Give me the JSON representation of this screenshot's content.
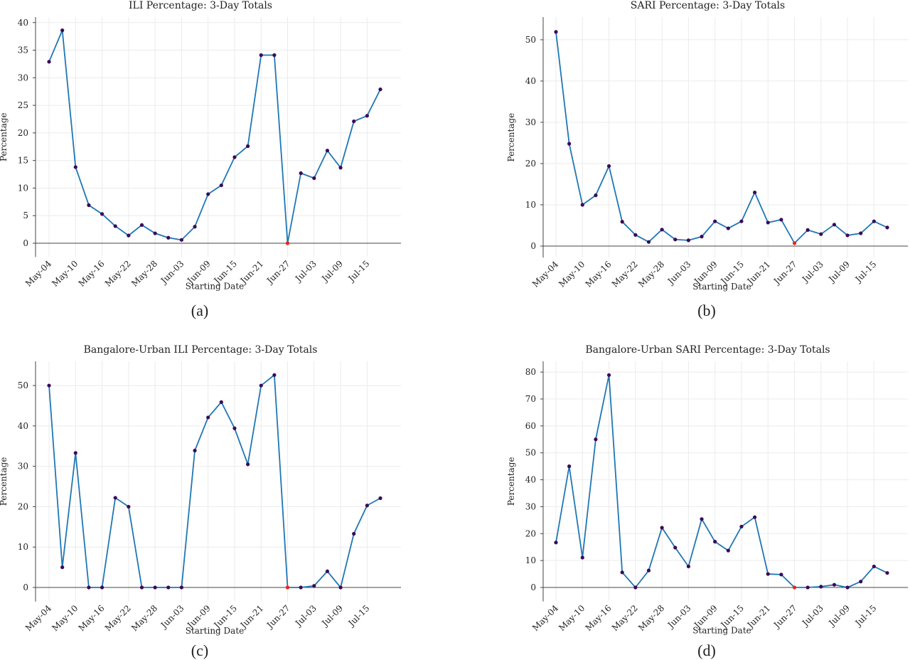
{
  "chart_data": [
    {
      "type": "line",
      "title": "ILI Percentage: 3-Day Totals",
      "xlabel": "Starting Date",
      "ylabel": "Percentage",
      "caption": "(a)",
      "tick_labels": [
        "May-04",
        "May-10",
        "May-16",
        "May-22",
        "May-28",
        "Jun-03",
        "Jun-09",
        "Jun-15",
        "Jun-21",
        "Jun-27",
        "Jul-03",
        "Jul-09",
        "Jul-15"
      ],
      "x": [
        "May-04",
        "May-07",
        "May-10",
        "May-13",
        "May-16",
        "May-19",
        "May-22",
        "May-25",
        "May-28",
        "May-31",
        "Jun-03",
        "Jun-06",
        "Jun-09",
        "Jun-12",
        "Jun-15",
        "Jun-18",
        "Jun-21",
        "Jun-24",
        "Jun-27",
        "Jun-30",
        "Jul-03",
        "Jul-06",
        "Jul-09",
        "Jul-12",
        "Jul-15",
        "Jul-18"
      ],
      "values": [
        32.9,
        38.6,
        13.8,
        6.9,
        5.3,
        3.1,
        1.4,
        3.3,
        1.8,
        1.0,
        0.6,
        3.0,
        8.9,
        10.5,
        15.6,
        17.6,
        34.1,
        34.1,
        0.0,
        12.7,
        11.8,
        16.8,
        13.7,
        22.1,
        23.1,
        27.9
      ],
      "highlight_index": 18,
      "yticks": [
        0,
        5,
        10,
        15,
        20,
        25,
        30,
        35,
        40
      ],
      "ylim": [
        -2.5,
        41
      ],
      "grid": true,
      "line_color": "#1f77b4",
      "marker_color": "#3b0a57",
      "highlight_color": "#e6261c"
    },
    {
      "type": "line",
      "title": "SARI Percentage: 3-Day Totals",
      "xlabel": "Starting Date",
      "ylabel": "Percentage",
      "caption": "(b)",
      "tick_labels": [
        "May-04",
        "May-10",
        "May-16",
        "May-22",
        "May-28",
        "Jun-03",
        "Jun-09",
        "Jun-15",
        "Jun-21",
        "Jun-27",
        "Jul-03",
        "Jul-09",
        "Jul-15"
      ],
      "x": [
        "May-04",
        "May-07",
        "May-10",
        "May-13",
        "May-16",
        "May-19",
        "May-22",
        "May-25",
        "May-28",
        "May-31",
        "Jun-03",
        "Jun-06",
        "Jun-09",
        "Jun-12",
        "Jun-15",
        "Jun-18",
        "Jun-21",
        "Jun-24",
        "Jun-27",
        "Jun-30",
        "Jul-03",
        "Jul-06",
        "Jul-09",
        "Jul-12",
        "Jul-15",
        "Jul-18"
      ],
      "values": [
        51.9,
        24.8,
        10.0,
        12.3,
        19.4,
        5.9,
        2.7,
        1.0,
        4.0,
        1.6,
        1.4,
        2.3,
        6.0,
        4.3,
        6.0,
        13.0,
        5.7,
        6.4,
        0.7,
        3.9,
        2.9,
        5.2,
        2.6,
        3.1,
        6.0,
        4.5
      ],
      "highlight_index": 18,
      "yticks": [
        0,
        10,
        20,
        30,
        40,
        50
      ],
      "ylim": [
        -2.8,
        55.5
      ],
      "grid": true,
      "line_color": "#1f77b4",
      "marker_color": "#3b0a57",
      "highlight_color": "#e6261c"
    },
    {
      "type": "line",
      "title": "Bangalore-Urban ILI Percentage: 3-Day Totals",
      "xlabel": "Starting Date",
      "ylabel": "Percentage",
      "caption": "(c)",
      "tick_labels": [
        "May-04",
        "May-10",
        "May-16",
        "May-22",
        "May-28",
        "Jun-03",
        "Jun-09",
        "Jun-15",
        "Jun-21",
        "Jun-27",
        "Jul-03",
        "Jul-09",
        "Jul-15"
      ],
      "x": [
        "May-04",
        "May-07",
        "May-10",
        "May-13",
        "May-16",
        "May-19",
        "May-22",
        "May-25",
        "May-28",
        "May-31",
        "Jun-03",
        "Jun-06",
        "Jun-09",
        "Jun-12",
        "Jun-15",
        "Jun-18",
        "Jun-21",
        "Jun-24",
        "Jun-27",
        "Jun-30",
        "Jul-03",
        "Jul-06",
        "Jul-09",
        "Jul-12",
        "Jul-15",
        "Jul-18"
      ],
      "values": [
        50.0,
        5.0,
        33.3,
        0.0,
        0.0,
        22.2,
        20.0,
        0.0,
        0.0,
        0.0,
        0.0,
        33.9,
        42.1,
        45.9,
        39.4,
        30.5,
        50.0,
        52.6,
        0.0,
        0.0,
        0.4,
        4.0,
        0.0,
        13.3,
        20.3,
        22.1
      ],
      "highlight_index": 18,
      "yticks": [
        0,
        10,
        20,
        30,
        40,
        50
      ],
      "ylim": [
        -3.5,
        56
      ],
      "grid": true,
      "line_color": "#1f77b4",
      "marker_color": "#3b0a57",
      "highlight_color": "#e6261c"
    },
    {
      "type": "line",
      "title": "Bangalore-Urban SARI Percentage: 3-Day Totals",
      "xlabel": "Starting Date",
      "ylabel": "Percentage",
      "caption": "(d)",
      "tick_labels": [
        "May-04",
        "May-10",
        "May-16",
        "May-22",
        "May-28",
        "Jun-03",
        "Jun-09",
        "Jun-15",
        "Jun-21",
        "Jun-27",
        "Jul-03",
        "Jul-09",
        "Jul-15"
      ],
      "x": [
        "May-04",
        "May-07",
        "May-10",
        "May-13",
        "May-16",
        "May-19",
        "May-22",
        "May-25",
        "May-28",
        "May-31",
        "Jun-03",
        "Jun-06",
        "Jun-09",
        "Jun-12",
        "Jun-15",
        "Jun-18",
        "Jun-21",
        "Jun-24",
        "Jun-27",
        "Jun-30",
        "Jul-03",
        "Jul-06",
        "Jul-09",
        "Jul-12",
        "Jul-15",
        "Jul-18"
      ],
      "values": [
        16.7,
        45.0,
        11.1,
        55.0,
        78.9,
        5.6,
        0.0,
        6.3,
        22.2,
        14.8,
        7.8,
        25.4,
        17.0,
        13.7,
        22.6,
        26.1,
        5.0,
        4.8,
        0.0,
        0.0,
        0.3,
        1.0,
        0.0,
        2.2,
        7.8,
        5.4
      ],
      "highlight_index": 18,
      "yticks": [
        0,
        10,
        20,
        30,
        40,
        50,
        60,
        70,
        80
      ],
      "ylim": [
        -5.2,
        84
      ],
      "grid": true,
      "line_color": "#1f77b4",
      "marker_color": "#3b0a57",
      "highlight_color": "#e6261c"
    }
  ]
}
